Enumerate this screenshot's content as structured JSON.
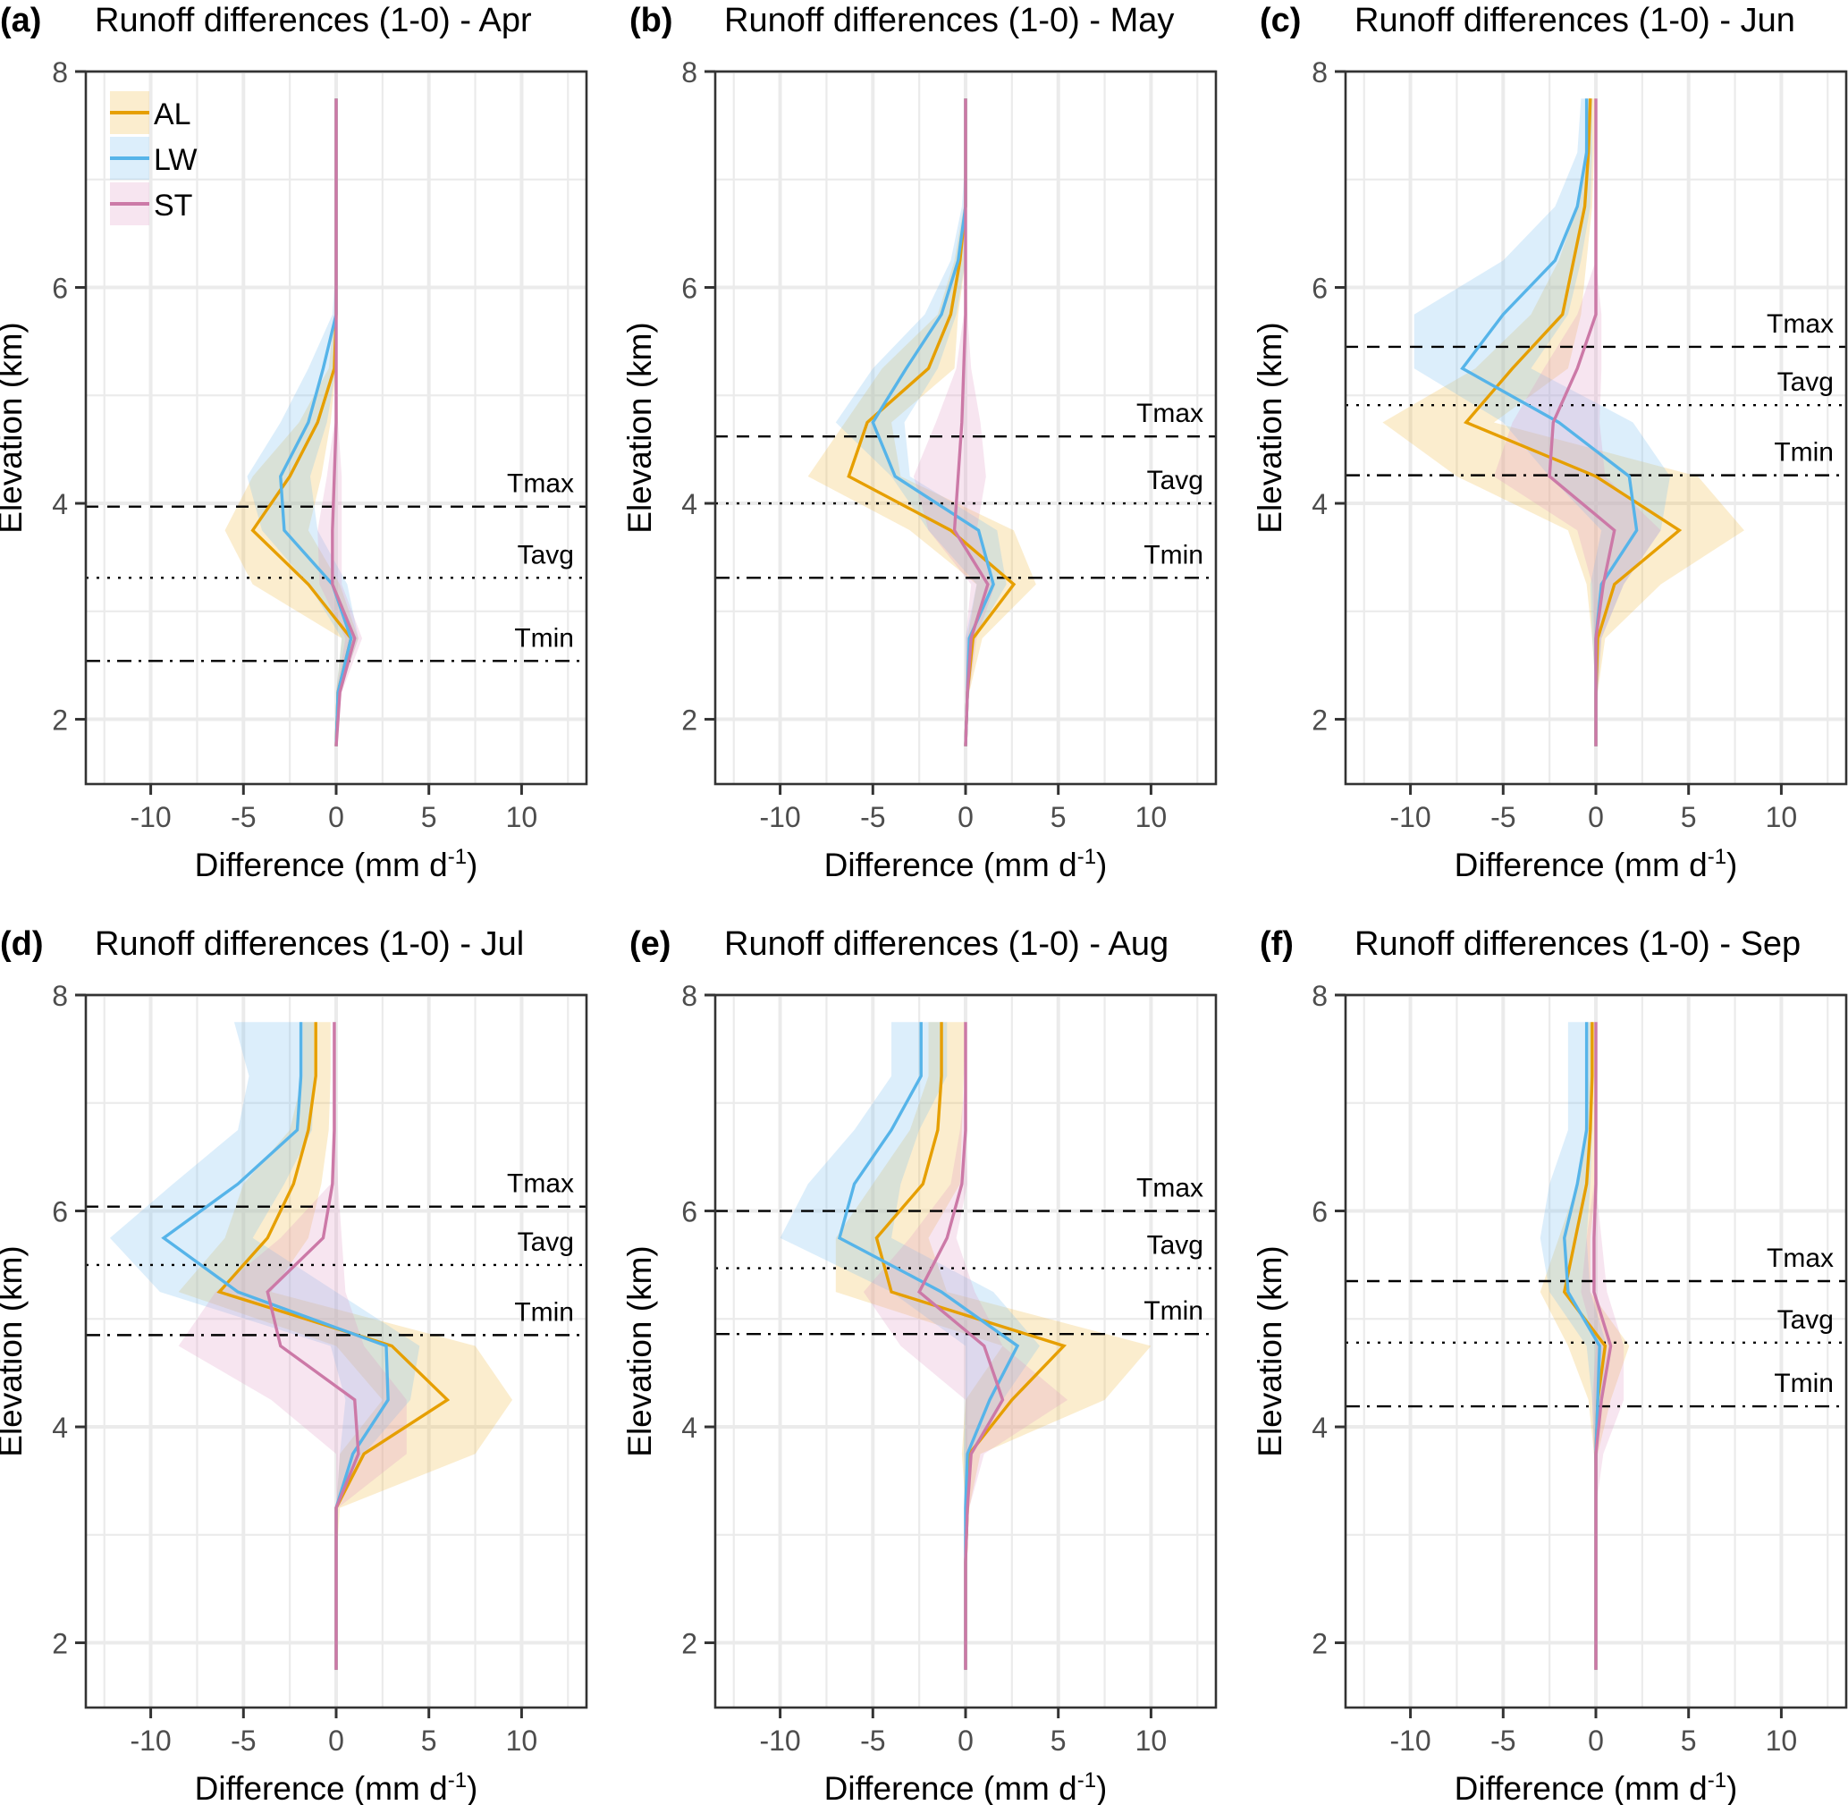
{
  "chart_data": {
    "type": "line",
    "layout": "2x3 small multiples",
    "series_names": [
      "AL",
      "LW",
      "ST"
    ],
    "colors": {
      "AL": "#E69F00",
      "LW": "#56B4E9",
      "ST": "#CC79A7"
    },
    "legend": {
      "position": "top-left (panel a)",
      "entries": [
        "AL",
        "LW",
        "ST"
      ]
    },
    "xlabel": "Difference (mm d-1)",
    "xlabel_parts": {
      "main": "Difference (mm d",
      "sup": "-1",
      "close": ")"
    },
    "ylabel": "Elevation (km)",
    "xlim": [
      -13.5,
      13.5
    ],
    "ylim": [
      1.4,
      8
    ],
    "xticks": [
      -10,
      -5,
      0,
      5,
      10
    ],
    "xtick_labels": [
      "-10",
      "-5",
      "0",
      "5",
      "10"
    ],
    "yticks": [
      2,
      4,
      6,
      8
    ],
    "ytick_labels": [
      "2",
      "4",
      "6",
      "8"
    ],
    "grid": true,
    "elevation": [
      1.75,
      2.25,
      2.75,
      3.25,
      3.75,
      4.25,
      4.75,
      5.25,
      5.75,
      6.25,
      6.75,
      7.25,
      7.75
    ],
    "panels": [
      {
        "label": "(a)",
        "title": "Runoff differences (1-0) - Apr",
        "ref_lines": [
          {
            "name": "Tmax",
            "y": 3.97,
            "style": "dashed"
          },
          {
            "name": "Tavg",
            "y": 3.31,
            "style": "dotted"
          },
          {
            "name": "Tmin",
            "y": 2.54,
            "style": "dotdash"
          }
        ],
        "series": [
          {
            "name": "AL",
            "values": [
              0,
              0.1,
              0.8,
              -1.5,
              -4.5,
              -2.5,
              -1.0,
              -0.1,
              0,
              0,
              0,
              0,
              0
            ],
            "lower": [
              0,
              0,
              0.3,
              -4.5,
              -6.0,
              -4.5,
              -2.0,
              -0.4,
              -0.1,
              0,
              0,
              0,
              0
            ],
            "upper": [
              0,
              0.2,
              1.2,
              0.2,
              -1.5,
              -0.8,
              -0.3,
              0,
              0,
              0,
              0,
              0,
              0
            ]
          },
          {
            "name": "LW",
            "values": [
              0,
              0.1,
              0.8,
              -0.2,
              -2.8,
              -3.0,
              -1.5,
              -0.7,
              0,
              0,
              0,
              0,
              0
            ],
            "lower": [
              0,
              0,
              0.3,
              -1.5,
              -4.0,
              -4.8,
              -3.0,
              -1.5,
              -0.2,
              0,
              0,
              0,
              0
            ],
            "upper": [
              0,
              0.2,
              1.2,
              0.6,
              -1.0,
              -1.4,
              -0.5,
              0,
              0,
              0,
              0,
              0,
              0
            ]
          },
          {
            "name": "ST",
            "values": [
              0,
              0.2,
              1.0,
              -0.2,
              -0.2,
              -0.1,
              0,
              0,
              0,
              0,
              0,
              0,
              0
            ],
            "lower": [
              0,
              0,
              0.5,
              -0.9,
              -1.0,
              -0.5,
              -0.1,
              0,
              0,
              0,
              0,
              0,
              0
            ],
            "upper": [
              0,
              0.3,
              1.4,
              0.3,
              0.3,
              0.3,
              0.1,
              0,
              0,
              0,
              0,
              0,
              0
            ]
          }
        ]
      },
      {
        "label": "(b)",
        "title": "Runoff differences (1-0) - May",
        "ref_lines": [
          {
            "name": "Tmax",
            "y": 4.62,
            "style": "dashed"
          },
          {
            "name": "Tavg",
            "y": 4.0,
            "style": "dotted"
          },
          {
            "name": "Tmin",
            "y": 3.31,
            "style": "dotdash"
          }
        ],
        "series": [
          {
            "name": "AL",
            "values": [
              0,
              0.1,
              0.4,
              2.6,
              -0.8,
              -6.3,
              -5.3,
              -2.0,
              -0.8,
              -0.3,
              0,
              0,
              0
            ],
            "lower": [
              0,
              0,
              0.1,
              0.6,
              -3.0,
              -8.5,
              -6.5,
              -4.5,
              -1.5,
              -0.6,
              -0.1,
              0,
              0
            ],
            "upper": [
              0,
              0.2,
              0.9,
              3.8,
              2.6,
              -3.5,
              -4.0,
              -0.6,
              -0.4,
              0,
              0,
              0,
              0
            ]
          },
          {
            "name": "LW",
            "values": [
              0,
              0.1,
              0.2,
              1.5,
              0.7,
              -3.8,
              -5.0,
              -3.2,
              -1.3,
              -0.4,
              0,
              0,
              0
            ],
            "lower": [
              0,
              0,
              0,
              0.6,
              -2.0,
              -4.0,
              -7.0,
              -5.0,
              -2.2,
              -0.8,
              -0.2,
              0,
              0
            ],
            "upper": [
              0,
              0.2,
              0.5,
              2.2,
              1.7,
              -3.0,
              -3.3,
              -1.5,
              -0.5,
              0,
              0,
              0,
              0
            ]
          },
          {
            "name": "ST",
            "values": [
              0,
              0.1,
              0.3,
              1.2,
              -0.6,
              -0.4,
              -0.2,
              -0.1,
              0,
              0,
              0,
              0,
              0
            ],
            "lower": [
              0,
              0,
              0,
              0.3,
              -2.0,
              -2.8,
              -1.6,
              -0.5,
              -0.1,
              0,
              0,
              0,
              0
            ],
            "upper": [
              0,
              0.2,
              0.6,
              1.6,
              0.6,
              1.1,
              0.8,
              0.3,
              0.1,
              0,
              0,
              0,
              0
            ]
          }
        ]
      },
      {
        "label": "(c)",
        "title": "Runoff differences (1-0) - Jun",
        "ref_lines": [
          {
            "name": "Tmax",
            "y": 5.45,
            "style": "dashed"
          },
          {
            "name": "Tavg",
            "y": 4.91,
            "style": "dotted"
          },
          {
            "name": "Tmin",
            "y": 4.26,
            "style": "dotdash"
          }
        ],
        "series": [
          {
            "name": "AL",
            "values": [
              0,
              0,
              0.1,
              1.0,
              4.5,
              0,
              -7.0,
              -4.5,
              -1.8,
              -1.2,
              -0.6,
              -0.4,
              -0.3
            ],
            "lower": [
              0,
              0,
              -0.2,
              -0.5,
              -1.5,
              -7.5,
              -11.5,
              -6.5,
              -3.5,
              -2.0,
              -1.0,
              -0.6,
              -0.5
            ],
            "upper": [
              0,
              0.1,
              0.5,
              3.5,
              8.0,
              5.5,
              -5.5,
              -1.5,
              -0.8,
              -0.5,
              -0.2,
              -0.1,
              0
            ]
          },
          {
            "name": "LW",
            "values": [
              0,
              0,
              0,
              0.3,
              2.2,
              1.8,
              -2.0,
              -7.2,
              -5.0,
              -2.2,
              -1.0,
              -0.5,
              -0.5
            ],
            "lower": [
              0,
              0,
              -0.2,
              -0.3,
              0.3,
              -2.5,
              -5.0,
              -9.8,
              -9.8,
              -5.0,
              -2.2,
              -1.0,
              -0.8
            ],
            "upper": [
              0,
              0.1,
              0.3,
              1.5,
              3.5,
              4.0,
              2.0,
              -3.5,
              -1.5,
              -0.8,
              -0.3,
              -0.2,
              -0.2
            ]
          },
          {
            "name": "ST",
            "values": [
              0,
              0,
              0,
              0.4,
              1.0,
              -2.5,
              -2.3,
              -1.0,
              0,
              0,
              0,
              0,
              0
            ],
            "lower": [
              0,
              0,
              -0.1,
              -0.2,
              -1.0,
              -5.5,
              -4.5,
              -2.8,
              -1.0,
              0,
              0,
              0,
              0
            ],
            "upper": [
              0,
              0.1,
              0.3,
              1.5,
              3.5,
              0.5,
              0.2,
              0.3,
              0.3,
              0,
              0,
              0,
              0
            ]
          }
        ]
      },
      {
        "label": "(d)",
        "title": "Runoff differences (1-0) - Jul",
        "ref_lines": [
          {
            "name": "Tmax",
            "y": 6.04,
            "style": "dashed"
          },
          {
            "name": "Tavg",
            "y": 5.5,
            "style": "dotted"
          },
          {
            "name": "Tmin",
            "y": 4.85,
            "style": "dotdash"
          }
        ],
        "series": [
          {
            "name": "AL",
            "values": [
              0,
              0,
              0,
              0,
              1.5,
              6.0,
              3.0,
              -6.3,
              -3.7,
              -2.3,
              -1.5,
              -1.1,
              -1.1
            ],
            "lower": [
              0,
              0,
              0,
              0,
              0.2,
              2.5,
              0,
              -8.5,
              -6.0,
              -5.0,
              -2.5,
              -1.8,
              -1.8
            ],
            "upper": [
              0,
              0,
              0,
              0.2,
              7.5,
              9.5,
              7.5,
              -3.5,
              -1.5,
              -0.8,
              -0.4,
              -0.3,
              -0.3
            ]
          },
          {
            "name": "LW",
            "values": [
              0,
              0,
              0,
              0,
              0.9,
              2.8,
              2.7,
              -5.3,
              -9.3,
              -5.3,
              -2.1,
              -1.9,
              -1.9
            ],
            "lower": [
              0,
              0,
              0,
              0,
              0.2,
              0.5,
              -0.3,
              -9.5,
              -12.2,
              -8.8,
              -5.3,
              -4.7,
              -5.5
            ],
            "upper": [
              0,
              0,
              0,
              0.1,
              1.5,
              4.0,
              4.5,
              0,
              -4.5,
              -2.8,
              -1.3,
              -1.2,
              -1.2
            ]
          },
          {
            "name": "ST",
            "values": [
              0,
              0,
              0,
              0,
              1.2,
              1.0,
              -3.0,
              -3.7,
              -0.7,
              -0.2,
              -0.1,
              -0.1,
              -0.1
            ],
            "lower": [
              0,
              0,
              0,
              0,
              0,
              -3.5,
              -8.5,
              -6.5,
              -3.0,
              -0.3,
              -0.2,
              -0.2,
              -0.2
            ],
            "upper": [
              0,
              0,
              0,
              0.1,
              3.8,
              3.8,
              1.5,
              0.5,
              0.3,
              0.1,
              0,
              0,
              0
            ]
          }
        ]
      },
      {
        "label": "(e)",
        "title": "Runoff differences (1-0) - Aug",
        "ref_lines": [
          {
            "name": "Tmax",
            "y": 6.0,
            "style": "dashed"
          },
          {
            "name": "Tavg",
            "y": 5.47,
            "style": "dotted"
          },
          {
            "name": "Tmin",
            "y": 4.86,
            "style": "dotdash"
          }
        ],
        "series": [
          {
            "name": "AL",
            "values": [
              0,
              0,
              0,
              0.1,
              0.2,
              2.5,
              5.3,
              -4.0,
              -4.8,
              -2.3,
              -1.5,
              -1.3,
              -1.3
            ],
            "lower": [
              0,
              0,
              0,
              0,
              -0.2,
              0,
              2.0,
              -7.0,
              -7.0,
              -5.0,
              -3.0,
              -2.0,
              -2.0
            ],
            "upper": [
              0,
              0,
              0,
              0.2,
              0.8,
              7.5,
              10.0,
              -1.0,
              -2.0,
              -0.3,
              -0.2,
              -0.1,
              0
            ]
          },
          {
            "name": "LW",
            "values": [
              0,
              0,
              0,
              0,
              0.1,
              1.3,
              2.8,
              -1.3,
              -6.8,
              -6.0,
              -4.0,
              -2.4,
              -2.4
            ],
            "lower": [
              0,
              0,
              0,
              0,
              -0.1,
              0,
              0,
              -4.0,
              -10.0,
              -8.5,
              -6.0,
              -4.0,
              -4.0
            ],
            "upper": [
              0,
              0,
              0,
              0.1,
              0.3,
              2.0,
              4.0,
              1.5,
              -4.0,
              -3.5,
              -2.5,
              -1.0,
              -1.0
            ]
          },
          {
            "name": "ST",
            "values": [
              0,
              0,
              0,
              0.1,
              0.3,
              2.0,
              1.0,
              -2.5,
              -1.0,
              -0.2,
              0,
              0,
              0
            ],
            "lower": [
              0,
              0,
              0,
              0,
              0,
              0,
              -3.5,
              -5.5,
              -3.0,
              -0.8,
              -0.3,
              0,
              0
            ],
            "upper": [
              0,
              0,
              0,
              0.2,
              1.0,
              5.5,
              2.0,
              0.5,
              -0.5,
              0.1,
              0,
              0,
              0
            ]
          }
        ]
      },
      {
        "label": "(f)",
        "title": "Runoff differences (1-0) - Sep",
        "ref_lines": [
          {
            "name": "Tmax",
            "y": 5.35,
            "style": "dashed"
          },
          {
            "name": "Tavg",
            "y": 4.78,
            "style": "dotted"
          },
          {
            "name": "Tmin",
            "y": 4.19,
            "style": "dotdash"
          }
        ],
        "series": [
          {
            "name": "AL",
            "values": [
              0,
              0,
              0,
              0,
              0,
              0.1,
              0.5,
              -1.7,
              -1.1,
              -0.5,
              -0.3,
              -0.2,
              -0.2
            ],
            "lower": [
              0,
              0,
              0,
              0,
              -0.1,
              -0.4,
              -1.5,
              -3.0,
              -2.0,
              -1.0,
              -0.6,
              -0.4,
              -0.4
            ],
            "upper": [
              0,
              0,
              0,
              0,
              0.1,
              0.8,
              1.8,
              -0.3,
              -0.3,
              0,
              0,
              0,
              0
            ]
          },
          {
            "name": "LW",
            "values": [
              0,
              0,
              0,
              0,
              0,
              0.1,
              0.2,
              -1.5,
              -1.7,
              -1.0,
              -0.5,
              -0.5,
              -0.5
            ],
            "lower": [
              0,
              0,
              0,
              0,
              -0.1,
              -0.2,
              -0.5,
              -2.5,
              -3.0,
              -2.5,
              -1.5,
              -1.5,
              -1.5
            ],
            "upper": [
              0,
              0,
              0,
              0,
              0.1,
              0.3,
              0.6,
              -0.3,
              -0.5,
              -0.3,
              -0.2,
              -0.2,
              -0.2
            ]
          },
          {
            "name": "ST",
            "values": [
              0,
              0,
              0,
              0,
              0,
              0.3,
              0.8,
              -0.1,
              -0.1,
              0,
              0,
              0,
              0
            ],
            "lower": [
              0,
              0,
              0,
              0,
              -0.1,
              -0.2,
              0,
              -0.8,
              -0.5,
              -0.1,
              0,
              0,
              0
            ],
            "upper": [
              0,
              0,
              0,
              0,
              0.4,
              1.5,
              1.5,
              0.6,
              0.3,
              0,
              0,
              0,
              0
            ]
          }
        ]
      }
    ]
  }
}
